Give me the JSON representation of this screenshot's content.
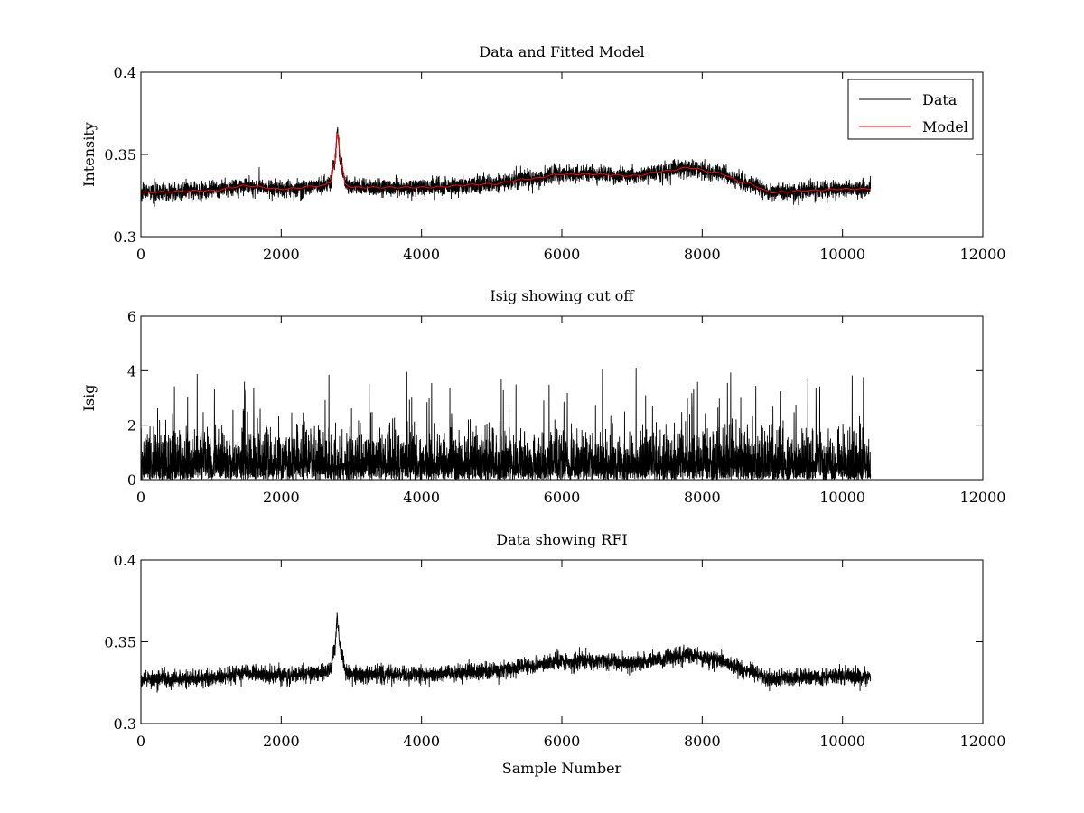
{
  "chart_data": [
    {
      "type": "line",
      "title": "Data and Fitted Model",
      "xlabel": "",
      "ylabel": "Intensity",
      "xlim": [
        0,
        12000
      ],
      "ylim": [
        0.3,
        0.4
      ],
      "xticks": [
        0,
        2000,
        4000,
        6000,
        8000,
        10000,
        12000
      ],
      "yticks": [
        0.3,
        0.35,
        0.4
      ],
      "xtick_labels": [
        "0",
        "2000",
        "4000",
        "6000",
        "8000",
        "10000",
        "12000"
      ],
      "ytick_labels": [
        "0.3",
        "0.35",
        "0.4"
      ],
      "n_samples": 10400,
      "legend": {
        "position": "top-right",
        "entries": [
          "Data",
          "Model"
        ]
      },
      "series": [
        {
          "name": "Data",
          "color": "#000000",
          "kind": "noisy",
          "noise_amplitude": 0.0045,
          "baseline": {
            "x": [
              0,
              1000,
              1500,
              2000,
              2600,
              2700,
              2760,
              2800,
              2850,
              2920,
              3000,
              4000,
              5000,
              5500,
              6000,
              6500,
              7000,
              7500,
              7800,
              8200,
              8600,
              9000,
              9500,
              10000,
              10400
            ],
            "y": [
              0.327,
              0.328,
              0.331,
              0.329,
              0.331,
              0.333,
              0.345,
              0.363,
              0.345,
              0.332,
              0.33,
              0.33,
              0.332,
              0.335,
              0.338,
              0.338,
              0.337,
              0.34,
              0.342,
              0.339,
              0.333,
              0.327,
              0.328,
              0.329,
              0.329
            ]
          }
        },
        {
          "name": "Model",
          "color": "#ff0000",
          "kind": "smooth",
          "baseline": {
            "x": [
              0,
              1000,
              1500,
              2000,
              2600,
              2700,
              2760,
              2800,
              2850,
              2920,
              3000,
              4000,
              5000,
              5500,
              6000,
              6500,
              7000,
              7500,
              7800,
              8200,
              8600,
              9000,
              9500,
              10000,
              10400
            ],
            "y": [
              0.327,
              0.328,
              0.331,
              0.329,
              0.331,
              0.333,
              0.345,
              0.363,
              0.345,
              0.332,
              0.33,
              0.33,
              0.332,
              0.335,
              0.338,
              0.338,
              0.337,
              0.34,
              0.342,
              0.339,
              0.333,
              0.327,
              0.328,
              0.329,
              0.329
            ]
          }
        }
      ]
    },
    {
      "type": "line",
      "title": "Isig showing cut off",
      "xlabel": "",
      "ylabel": "Isig",
      "xlim": [
        0,
        12000
      ],
      "ylim": [
        0,
        6
      ],
      "xticks": [
        0,
        2000,
        4000,
        6000,
        8000,
        10000,
        12000
      ],
      "yticks": [
        0,
        2,
        4,
        6
      ],
      "xtick_labels": [
        "0",
        "2000",
        "4000",
        "6000",
        "8000",
        "10000",
        "12000"
      ],
      "ytick_labels": [
        "0",
        "2",
        "4",
        "6"
      ],
      "n_samples": 10400,
      "series": [
        {
          "name": "Isig",
          "color": "#000000",
          "kind": "abs_noise",
          "mean": 0.8,
          "max": 4.1
        }
      ]
    },
    {
      "type": "line",
      "title": "Data showing RFI",
      "xlabel": "Sample Number",
      "ylabel": "",
      "xlim": [
        0,
        12000
      ],
      "ylim": [
        0.3,
        0.4
      ],
      "xticks": [
        0,
        2000,
        4000,
        6000,
        8000,
        10000,
        12000
      ],
      "yticks": [
        0.3,
        0.35,
        0.4
      ],
      "xtick_labels": [
        "0",
        "2000",
        "4000",
        "6000",
        "8000",
        "10000",
        "12000"
      ],
      "ytick_labels": [
        "0.3",
        "0.35",
        "0.4"
      ],
      "n_samples": 10400,
      "series": [
        {
          "name": "Data",
          "color": "#000000",
          "kind": "noisy",
          "noise_amplitude": 0.0045,
          "baseline": {
            "x": [
              0,
              1000,
              1500,
              2000,
              2600,
              2700,
              2760,
              2800,
              2850,
              2920,
              3000,
              4000,
              5000,
              5500,
              6000,
              6500,
              7000,
              7500,
              7800,
              8200,
              8600,
              9000,
              9500,
              10000,
              10400
            ],
            "y": [
              0.327,
              0.328,
              0.331,
              0.329,
              0.331,
              0.333,
              0.345,
              0.363,
              0.345,
              0.332,
              0.33,
              0.33,
              0.332,
              0.335,
              0.338,
              0.338,
              0.337,
              0.34,
              0.342,
              0.339,
              0.333,
              0.327,
              0.328,
              0.329,
              0.329
            ]
          }
        }
      ]
    }
  ]
}
